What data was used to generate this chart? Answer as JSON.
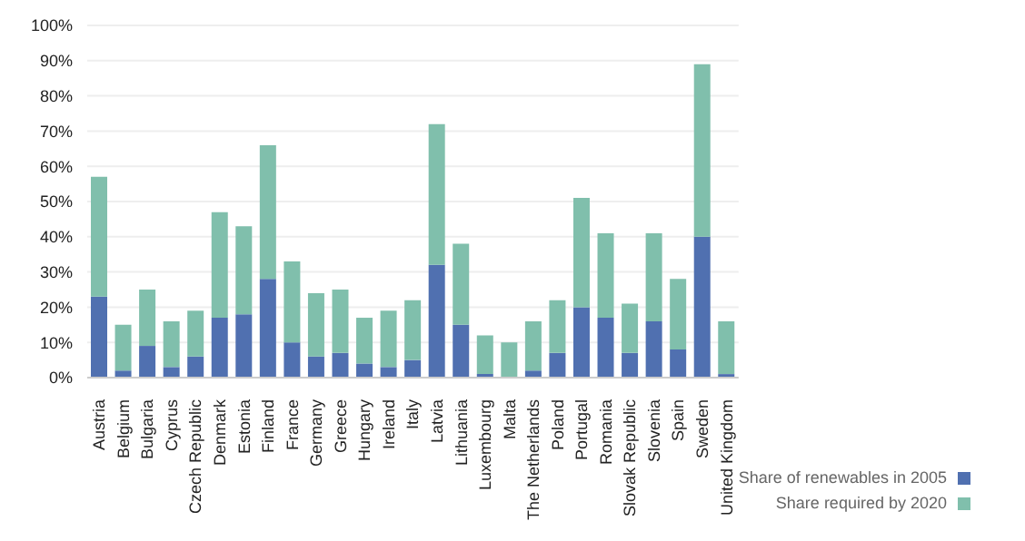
{
  "chart_data": {
    "type": "bar",
    "stacked": true,
    "categories": [
      "Austria",
      "Belgium",
      "Bulgaria",
      "Cyprus",
      "Czech Republic",
      "Denmark",
      "Estonia",
      "Finland",
      "France",
      "Germany",
      "Greece",
      "Hungary",
      "Ireland",
      "Italy",
      "Latvia",
      "Lithuania",
      "Luxembourg",
      "Malta",
      "The Netherlands",
      "Poland",
      "Portugal",
      "Romania",
      "Slovak Republic",
      "Slovenia",
      "Spain",
      "Sweden",
      "United Kingdom"
    ],
    "series": [
      {
        "name": "Share of renewables in 2005",
        "color": "#5070b0",
        "values": [
          23,
          2,
          9,
          3,
          6,
          17,
          18,
          28,
          10,
          6,
          7,
          4,
          3,
          5,
          32,
          15,
          1,
          0,
          2,
          7,
          20,
          17,
          7,
          16,
          8,
          40,
          1
        ]
      },
      {
        "name": "Share required by 2020",
        "color": "#80bfac",
        "values": [
          34,
          13,
          16,
          13,
          13,
          30,
          25,
          38,
          23,
          18,
          18,
          13,
          16,
          17,
          40,
          23,
          11,
          10,
          14,
          15,
          31,
          24,
          14,
          25,
          20,
          49,
          15
        ]
      }
    ],
    "ylim": [
      0,
      100
    ],
    "yticks": [
      {
        "value": 0,
        "label": "0%"
      },
      {
        "value": 10,
        "label": "10%"
      },
      {
        "value": 20,
        "label": "20%"
      },
      {
        "value": 30,
        "label": "30%"
      },
      {
        "value": 40,
        "label": "40%"
      },
      {
        "value": 50,
        "label": "50%"
      },
      {
        "value": 60,
        "label": "60%"
      },
      {
        "value": 70,
        "label": "70%"
      },
      {
        "value": 80,
        "label": "80%"
      },
      {
        "value": 90,
        "label": "90%"
      },
      {
        "value": 100,
        "label": "100%"
      }
    ],
    "grid": "y",
    "legend": "bottom right"
  }
}
